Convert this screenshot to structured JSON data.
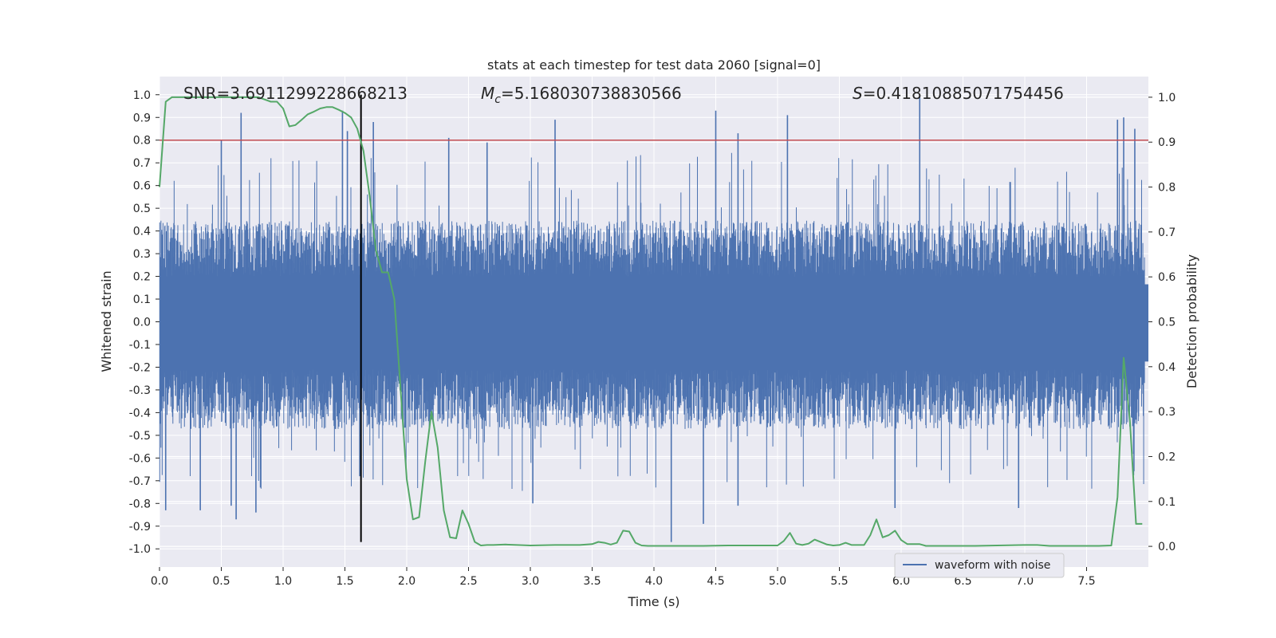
{
  "chart_data": {
    "type": "line",
    "title": "stats at each timestep for test data 2060 [signal=0]",
    "xlabel": "Time (s)",
    "ylabel_left": "Whitened strain",
    "ylabel_right": "Detection probability",
    "xlim": [
      0.0,
      8.0
    ],
    "ylim_left": [
      -1.08,
      1.08
    ],
    "ylim_right": [
      -0.046,
      1.046
    ],
    "x_ticks": [
      "0.0",
      "0.5",
      "1.0",
      "1.5",
      "2.0",
      "2.5",
      "3.0",
      "3.5",
      "4.0",
      "4.5",
      "5.0",
      "5.5",
      "6.0",
      "6.5",
      "7.0",
      "7.5"
    ],
    "y_ticks_left": [
      "1.0",
      "0.9",
      "0.8",
      "0.7",
      "0.6",
      "0.5",
      "0.4",
      "0.3",
      "0.2",
      "0.1",
      "0.0",
      "-0.1",
      "-0.2",
      "-0.3",
      "-0.4",
      "-0.5",
      "-0.6",
      "-0.7",
      "-0.8",
      "-0.9",
      "-1.0"
    ],
    "y_ticks_right": [
      "1.0",
      "0.9",
      "0.8",
      "0.7",
      "0.6",
      "0.5",
      "0.4",
      "0.3",
      "0.2",
      "0.1",
      "0.0"
    ],
    "grid": true,
    "annotations": {
      "snr": "SNR=3.6911299228668213",
      "mc_symbol": "M",
      "mc_sub": "c",
      "mc_value": "=5.168030738830566",
      "s_symbol": "S",
      "s_value": "=0.41810885071754456"
    },
    "threshold": {
      "value": 0.8,
      "color": "#c44e52"
    },
    "vertical_marker": {
      "x": 1.63,
      "y_range": [
        -0.97,
        1.0
      ],
      "color": "#000000"
    },
    "waveform_series": {
      "name": "waveform with noise",
      "color": "#4c72b0",
      "band_upper": 0.33,
      "band_lower": -0.35,
      "peaks": [
        {
          "x": 0.66,
          "y": 0.92
        },
        {
          "x": 0.5,
          "y": 0.8
        },
        {
          "x": 1.48,
          "y": 0.93
        },
        {
          "x": 1.52,
          "y": 0.84
        },
        {
          "x": 1.73,
          "y": 0.88
        },
        {
          "x": 2.34,
          "y": 0.81
        },
        {
          "x": 2.65,
          "y": 0.79
        },
        {
          "x": 3.2,
          "y": 0.89
        },
        {
          "x": 4.5,
          "y": 0.93
        },
        {
          "x": 4.68,
          "y": 0.83
        },
        {
          "x": 5.08,
          "y": 0.91
        },
        {
          "x": 6.15,
          "y": 1.0
        },
        {
          "x": 7.75,
          "y": 0.89
        },
        {
          "x": 7.8,
          "y": 0.9
        },
        {
          "x": 7.89,
          "y": 0.85
        },
        {
          "x": 0.05,
          "y": -0.83
        },
        {
          "x": 0.33,
          "y": -0.83
        },
        {
          "x": 0.58,
          "y": -0.81
        },
        {
          "x": 0.62,
          "y": -0.87
        },
        {
          "x": 0.78,
          "y": -0.84
        },
        {
          "x": 1.62,
          "y": -0.68
        },
        {
          "x": 3.02,
          "y": -0.8
        },
        {
          "x": 4.14,
          "y": -0.97
        },
        {
          "x": 4.4,
          "y": -0.89
        },
        {
          "x": 4.68,
          "y": -0.81
        },
        {
          "x": 5.95,
          "y": -0.82
        },
        {
          "x": 6.95,
          "y": -0.82
        }
      ]
    },
    "probability_series": {
      "name": "Detection probability",
      "color": "#55a868",
      "x": [
        0.0,
        0.05,
        0.1,
        0.2,
        0.3,
        0.4,
        0.5,
        0.6,
        0.7,
        0.8,
        0.9,
        0.95,
        1.0,
        1.05,
        1.1,
        1.15,
        1.2,
        1.25,
        1.3,
        1.35,
        1.4,
        1.45,
        1.5,
        1.55,
        1.6,
        1.65,
        1.7,
        1.75,
        1.8,
        1.85,
        1.9,
        1.95,
        2.0,
        2.05,
        2.1,
        2.15,
        2.2,
        2.25,
        2.3,
        2.35,
        2.4,
        2.45,
        2.5,
        2.55,
        2.6,
        2.65,
        2.7,
        2.8,
        3.0,
        3.2,
        3.4,
        3.5,
        3.55,
        3.6,
        3.65,
        3.7,
        3.75,
        3.8,
        3.85,
        3.9,
        3.95,
        4.0,
        4.1,
        4.2,
        4.4,
        4.6,
        4.8,
        5.0,
        5.05,
        5.1,
        5.15,
        5.2,
        5.25,
        5.3,
        5.4,
        5.45,
        5.5,
        5.55,
        5.6,
        5.7,
        5.75,
        5.8,
        5.85,
        5.9,
        5.95,
        6.0,
        6.05,
        6.1,
        6.15,
        6.2,
        6.25,
        6.3,
        6.4,
        6.6,
        7.0,
        7.1,
        7.2,
        7.4,
        7.6,
        7.7,
        7.75,
        7.8,
        7.85,
        7.9,
        7.95
      ],
      "y": [
        0.8,
        0.99,
        1.0,
        1.0,
        1.0,
        1.0,
        1.0,
        1.0,
        1.0,
        1.0,
        0.99,
        0.99,
        0.975,
        0.935,
        0.938,
        0.95,
        0.962,
        0.968,
        0.975,
        0.978,
        0.978,
        0.972,
        0.965,
        0.955,
        0.93,
        0.88,
        0.78,
        0.66,
        0.61,
        0.61,
        0.55,
        0.35,
        0.15,
        0.06,
        0.065,
        0.19,
        0.3,
        0.22,
        0.08,
        0.02,
        0.018,
        0.08,
        0.05,
        0.01,
        0.002,
        0.003,
        0.003,
        0.004,
        0.002,
        0.003,
        0.003,
        0.005,
        0.01,
        0.008,
        0.004,
        0.008,
        0.035,
        0.033,
        0.008,
        0.002,
        0.001,
        0.001,
        0.001,
        0.001,
        0.001,
        0.002,
        0.002,
        0.002,
        0.012,
        0.03,
        0.006,
        0.003,
        0.006,
        0.015,
        0.004,
        0.002,
        0.003,
        0.008,
        0.003,
        0.003,
        0.025,
        0.06,
        0.02,
        0.025,
        0.035,
        0.014,
        0.005,
        0.005,
        0.005,
        0.001,
        0.001,
        0.001,
        0.001,
        0.001,
        0.003,
        0.003,
        0.001,
        0.001,
        0.001,
        0.002,
        0.11,
        0.42,
        0.28,
        0.05,
        0.05
      ]
    },
    "legend": {
      "entries": [
        "waveform with noise"
      ],
      "placement": "lower-right"
    }
  },
  "colors": {
    "axes_bg": "#eaeaf2",
    "grid": "#ffffff",
    "text": "#262626"
  }
}
